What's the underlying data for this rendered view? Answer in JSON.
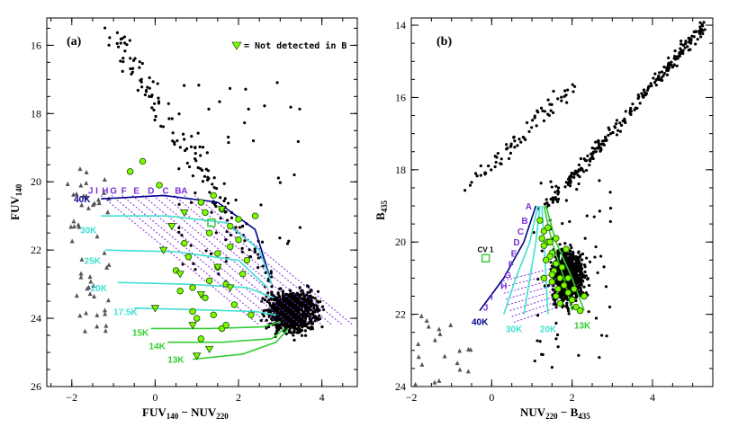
{
  "chart_data": [
    {
      "type": "scatter",
      "panel": "(a)",
      "xlabel": "FUV140 − NUV220",
      "ylabel": "FUV140",
      "xlim": [
        -2.6,
        4.85
      ],
      "ylim": [
        26,
        15.2
      ],
      "xticks": [
        -2,
        0,
        2,
        4
      ],
      "xtick_labels": [
        "−2",
        "0",
        "2",
        "4"
      ],
      "yticks": [
        16,
        18,
        20,
        22,
        24,
        26
      ],
      "ytick_labels": [
        "16",
        "18",
        "20",
        "22",
        "24",
        "26"
      ],
      "legend": {
        "text": "= Not detected in B",
        "placement": "top-right"
      },
      "temperature_labels": [
        {
          "text": "40K",
          "x": -1.95,
          "y": 20.5,
          "color": "#00008b"
        },
        {
          "text": "30K",
          "x": -1.8,
          "y": 21.4,
          "color": "#40e0d0"
        },
        {
          "text": "25K",
          "x": -1.7,
          "y": 22.3,
          "color": "#40e0d0"
        },
        {
          "text": "20K",
          "x": -1.55,
          "y": 23.1,
          "color": "#40e0d0"
        },
        {
          "text": "17.5K",
          "x": -1.0,
          "y": 23.8,
          "color": "#40e0d0"
        },
        {
          "text": "15K",
          "x": -0.55,
          "y": 24.4,
          "color": "#32cd32"
        },
        {
          "text": "14K",
          "x": -0.15,
          "y": 24.8,
          "color": "#32cd32"
        },
        {
          "text": "13K",
          "x": 0.3,
          "y": 25.2,
          "color": "#32cd32"
        }
      ],
      "letter_labels": {
        "letters": [
          "J",
          "I",
          "H",
          "G",
          "F",
          "E",
          "D",
          "C",
          "B",
          "A"
        ],
        "x": [
          -1.55,
          -1.4,
          -1.2,
          -1.0,
          -0.75,
          -0.45,
          -0.1,
          0.25,
          0.55,
          0.7
        ],
        "y": [
          20.25,
          20.25,
          20.25,
          20.25,
          20.25,
          20.25,
          20.25,
          20.25,
          20.25,
          20.25
        ]
      },
      "isochrones": [
        {
          "name": "40K",
          "color": "#00008b",
          "x": [
            -1.3,
            0.2,
            1.5,
            2.4,
            2.75
          ],
          "y": [
            20.5,
            20.4,
            20.6,
            21.4,
            22.8
          ]
        },
        {
          "name": "30K",
          "color": "#40e0d0",
          "x": [
            -1.3,
            0.3,
            1.7,
            2.5,
            2.8
          ],
          "y": [
            21.0,
            21.0,
            21.2,
            22.0,
            23.0
          ]
        },
        {
          "name": "25K",
          "color": "#40e0d0",
          "x": [
            -1.2,
            0.5,
            2.0,
            2.7
          ],
          "y": [
            22.0,
            22.05,
            22.3,
            23.1
          ]
        },
        {
          "name": "20K",
          "color": "#40e0d0",
          "x": [
            -0.9,
            0.7,
            2.2,
            2.85
          ],
          "y": [
            22.95,
            23.0,
            23.1,
            23.4
          ]
        },
        {
          "name": "17.5K",
          "color": "#40e0d0",
          "x": [
            -0.5,
            1.0,
            2.4,
            2.9
          ],
          "y": [
            23.7,
            23.75,
            23.8,
            23.9
          ]
        },
        {
          "name": "15K",
          "color": "#32cd32",
          "x": [
            -0.1,
            1.3,
            2.6,
            3.0
          ],
          "y": [
            24.3,
            24.3,
            24.25,
            24.1
          ]
        },
        {
          "name": "14K",
          "color": "#32cd32",
          "x": [
            0.3,
            1.6,
            2.8,
            3.1
          ],
          "y": [
            24.7,
            24.7,
            24.6,
            24.3
          ]
        },
        {
          "name": "13K",
          "color": "#32cd32",
          "x": [
            0.9,
            2.1,
            2.9,
            3.2
          ],
          "y": [
            25.2,
            25.05,
            24.7,
            24.3
          ]
        }
      ],
      "stars_detected": {
        "x": [
          1.1,
          1.6,
          2.0,
          1.3,
          1.8,
          0.8,
          1.5,
          2.2,
          1.7,
          0.9,
          1.2,
          1.9,
          1.4,
          2.1,
          0.6,
          1.0,
          1.6,
          2.3,
          1.3,
          1.8,
          0.7,
          1.1,
          2.0,
          1.5,
          0.5,
          1.2,
          1.7,
          2.4,
          0.9,
          1.4,
          -0.3,
          -0.6,
          0.1
        ],
        "y": [
          20.6,
          20.8,
          21.1,
          21.5,
          21.9,
          22.2,
          22.5,
          22.3,
          23.0,
          23.1,
          23.4,
          23.6,
          23.9,
          22.7,
          23.2,
          24.0,
          24.3,
          23.9,
          22.9,
          21.3,
          21.8,
          24.6,
          21.7,
          22.1,
          22.6,
          20.9,
          24.2,
          21.0,
          23.8,
          20.4,
          19.4,
          19.7,
          20.1
        ]
      },
      "stars_not_detected": {
        "x": [
          0.2,
          0.6,
          1.1,
          1.5,
          0.9,
          1.3,
          1.8,
          0.4,
          0.0,
          1.0,
          1.6,
          0.7
        ],
        "y": [
          22.0,
          22.7,
          23.3,
          22.5,
          24.2,
          24.9,
          23.1,
          21.3,
          23.7,
          25.1,
          20.8,
          20.9
        ]
      },
      "cv1_marker": {
        "x": 1.35,
        "y": 21.2
      }
    },
    {
      "type": "scatter",
      "panel": "(b)",
      "xlabel": "NUV220 − B435",
      "ylabel": "B435",
      "xlim": [
        -2.0,
        5.5
      ],
      "ylim": [
        24,
        13.8
      ],
      "xticks": [
        -2,
        0,
        2,
        4
      ],
      "xtick_labels": [
        "−2",
        "0",
        "2",
        "4"
      ],
      "yticks": [
        14,
        16,
        18,
        20,
        22,
        24
      ],
      "ytick_labels": [
        "14",
        "16",
        "18",
        "20",
        "22",
        "24"
      ],
      "temperature_labels": [
        {
          "text": "40K",
          "x": -0.5,
          "y": 22.2,
          "color": "#00008b"
        },
        {
          "text": "30K",
          "x": 0.35,
          "y": 22.4,
          "color": "#40e0d0"
        },
        {
          "text": "20K",
          "x": 1.2,
          "y": 22.4,
          "color": "#40e0d0"
        },
        {
          "text": "13K",
          "x": 2.05,
          "y": 22.3,
          "color": "#32cd32"
        }
      ],
      "letter_labels": {
        "letters": [
          "A",
          "B",
          "C",
          "D",
          "E",
          "F",
          "G",
          "H",
          "I",
          "J"
        ],
        "x": [
          0.92,
          0.82,
          0.72,
          0.62,
          0.55,
          0.48,
          0.4,
          0.3,
          0.0,
          -0.15
        ],
        "y": [
          19.0,
          19.4,
          19.7,
          20.0,
          20.3,
          20.6,
          20.9,
          21.2,
          21.5,
          21.8
        ]
      },
      "isochrones": [
        {
          "name": "40K",
          "color": "#00008b",
          "x": [
            1.1,
            0.8,
            0.3,
            -0.3
          ],
          "y": [
            19.0,
            20.0,
            21.0,
            21.9
          ]
        },
        {
          "name": "30K",
          "color": "#40e0d0",
          "x": [
            1.15,
            0.95,
            0.6,
            0.3
          ],
          "y": [
            19.0,
            20.0,
            21.0,
            22.0
          ]
        },
        {
          "name": "25K",
          "color": "#40e0d0",
          "x": [
            1.2,
            1.1,
            0.95,
            0.8
          ],
          "y": [
            19.0,
            20.0,
            21.0,
            22.0
          ]
        },
        {
          "name": "20K",
          "color": "#40e0d0",
          "x": [
            1.25,
            1.3,
            1.35,
            1.4
          ],
          "y": [
            19.0,
            20.0,
            21.0,
            22.0
          ]
        },
        {
          "name": "15K",
          "color": "#32cd32",
          "x": [
            1.3,
            1.5,
            1.8,
            2.0
          ],
          "y": [
            19.0,
            20.0,
            21.0,
            21.9
          ]
        },
        {
          "name": "13K",
          "color": "#32cd32",
          "x": [
            1.35,
            1.6,
            2.0,
            2.3
          ],
          "y": [
            19.0,
            20.0,
            21.0,
            21.9
          ]
        }
      ],
      "stars_detected": {
        "x": [
          1.2,
          1.3,
          1.4,
          1.5,
          1.6,
          1.3,
          1.45,
          1.55,
          1.7,
          1.8,
          1.25,
          1.35,
          1.5,
          1.65,
          1.9,
          2.0,
          1.4,
          1.6,
          1.75,
          2.1,
          1.3,
          1.5,
          1.7,
          1.85,
          2.2,
          1.45,
          1.9,
          2.05,
          1.6,
          2.3
        ],
        "y": [
          19.4,
          19.7,
          20.0,
          20.3,
          20.6,
          20.1,
          20.4,
          20.8,
          21.0,
          21.2,
          19.9,
          20.5,
          20.9,
          21.3,
          21.4,
          21.6,
          19.6,
          21.5,
          20.7,
          21.8,
          21.0,
          21.1,
          21.7,
          20.2,
          21.9,
          20.0,
          21.0,
          21.3,
          19.9,
          21.5
        ]
      },
      "cv1_marker": {
        "x": -0.15,
        "y": 20.45,
        "label": "CV 1"
      }
    }
  ]
}
